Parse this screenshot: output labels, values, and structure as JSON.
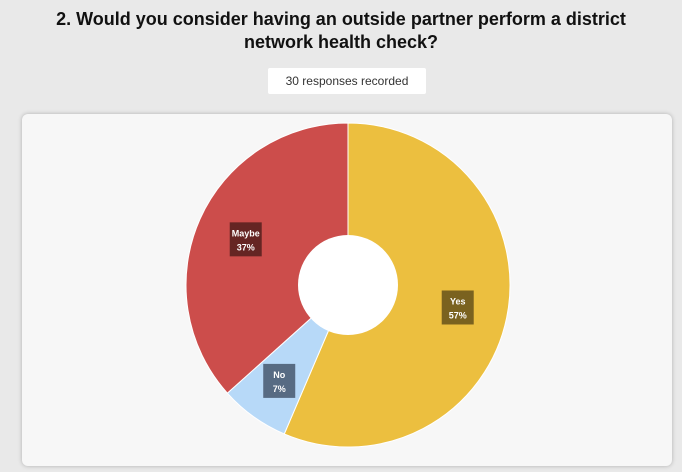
{
  "question": {
    "line1": "2. Would you consider having an outside partner perform a district",
    "line2": "network health check?"
  },
  "responses_label": "30 responses recorded",
  "chart_data": {
    "type": "pie",
    "style": "donut",
    "title": "2. Would you consider having an outside partner perform a district network health check?",
    "categories": [
      "Yes",
      "No",
      "Maybe"
    ],
    "values": [
      57,
      7,
      37
    ],
    "value_labels": [
      "57%",
      "7%",
      "37%"
    ],
    "unit": "%",
    "colors": [
      "#ecbf3f",
      "#b7d9f8",
      "#cc4d4b"
    ],
    "label_bg_colors": [
      "#705a1c",
      "#4e6278",
      "#5c2220"
    ],
    "legend": "none"
  }
}
